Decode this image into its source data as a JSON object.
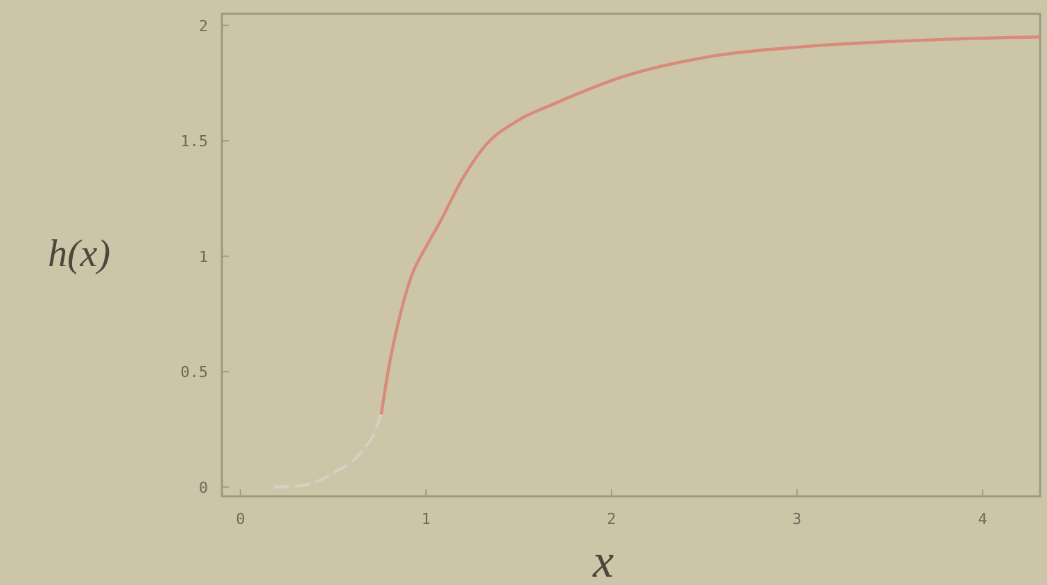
{
  "chart_data": {
    "type": "line",
    "xlabel": "x",
    "ylabel": "h(x)",
    "xlim": [
      -0.1,
      4.31
    ],
    "ylim": [
      -0.04,
      2.05
    ],
    "xticks": [
      0,
      1,
      2,
      3,
      4
    ],
    "yticks": [
      0,
      0.5,
      1,
      1.5,
      2
    ],
    "series": [
      {
        "color": "#d8cfc2",
        "line_style": "dashed",
        "x": [
          0.19,
          0.3,
          0.4,
          0.52,
          0.6,
          0.67,
          0.72,
          0.76
        ],
        "values": [
          0,
          0.005,
          0.02,
          0.07,
          0.11,
          0.17,
          0.23,
          0.32
        ]
      },
      {
        "color": "#d98a7a",
        "line_style": "solid",
        "x": [
          0.76,
          0.8,
          0.85,
          0.92,
          1.0,
          1.07,
          1.2,
          1.32,
          1.5,
          1.69,
          2.07,
          2.57,
          3.07,
          3.81,
          4.31
        ],
        "values": [
          0.32,
          0.52,
          0.71,
          0.91,
          1.04,
          1.14,
          1.34,
          1.48,
          1.59,
          1.66,
          1.78,
          1.87,
          1.91,
          1.94,
          1.95
        ]
      }
    ]
  }
}
